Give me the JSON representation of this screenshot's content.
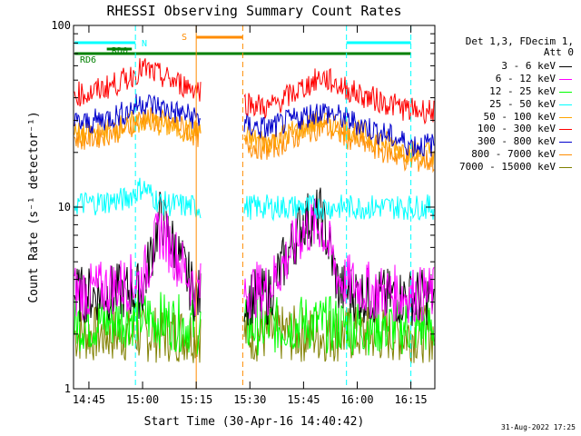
{
  "chart_data": {
    "type": "line",
    "title": "RHESSI Observing Summary Count Rates",
    "xlabel": "Start Time (30-Apr-16 14:40:42)",
    "ylabel": "Count Rate (s⁻¹ detector⁻¹)",
    "yscale": "log",
    "ylim": [
      1,
      100
    ],
    "yticks": [
      "1",
      "10",
      "100"
    ],
    "xticks": [
      "14:45",
      "15:00",
      "15:15",
      "15:30",
      "15:45",
      "16:00",
      "16:15"
    ],
    "legend_header": [
      "Det 1,3, FDecim 1,",
      "Att 0"
    ],
    "legend_position": "right",
    "series": [
      {
        "name": "3 - 6 keV",
        "color": "#000000",
        "values": {
          "14:45": 3.3,
          "15:00": 3.5,
          "15:05": 9.0,
          "15:15": 3.2,
          "15:35": 3.2,
          "15:45": 8.5,
          "15:50": 9.0,
          "15:55": 3.5,
          "16:05": 3.2,
          "16:15": 3.2
        }
      },
      {
        "name": "6 - 12 keV",
        "color": "#ff00ff",
        "values": {
          "14:45": 3.4,
          "15:00": 4.0,
          "15:05": 7.5,
          "15:15": 3.5,
          "15:35": 3.5,
          "15:45": 7.5,
          "15:50": 8.0,
          "15:55": 4.0,
          "16:05": 3.4,
          "16:15": 3.3
        }
      },
      {
        "name": "12 - 25 keV",
        "color": "#00ff00",
        "values": {
          "14:45": 2.3,
          "15:00": 2.5,
          "15:15": 2.2,
          "15:35": 2.2,
          "15:45": 2.3,
          "16:00": 2.2,
          "16:15": 2.2
        }
      },
      {
        "name": "25 - 50 keV",
        "color": "#00ffff",
        "values": {
          "14:45": 10.5,
          "14:55": 11.0,
          "15:00": 13.0,
          "15:05": 10.5,
          "15:15": 10.0,
          "15:35": 10.0,
          "15:45": 10.0,
          "16:00": 10.0,
          "16:15": 10.0
        }
      },
      {
        "name": "50 - 100 keV",
        "color": "#ffa500",
        "values": {
          "14:45": 25.0,
          "14:55": 28.0,
          "15:00": 30.0,
          "15:10": 27.0,
          "15:15": 26.0,
          "15:35": 23.0,
          "15:50": 30.0,
          "16:00": 26.0,
          "16:15": 20.0
        }
      },
      {
        "name": "100 - 300 keV",
        "color": "#ff0000",
        "values": {
          "14:45": 42.0,
          "14:55": 50.0,
          "15:00": 58.0,
          "15:10": 48.0,
          "15:15": 45.0,
          "15:35": 35.0,
          "15:50": 52.0,
          "16:00": 42.0,
          "16:15": 34.0
        }
      },
      {
        "name": "300 - 800 keV",
        "color": "#0000cc",
        "values": {
          "14:45": 29.0,
          "14:55": 33.0,
          "15:00": 38.0,
          "15:10": 33.0,
          "15:15": 31.0,
          "15:35": 27.0,
          "15:50": 34.0,
          "16:00": 29.0,
          "16:15": 22.0
        }
      },
      {
        "name": "800 - 7000 keV",
        "color": "#ff8c00",
        "values": {
          "14:45": 24.0,
          "14:55": 27.0,
          "15:00": 31.0,
          "15:10": 28.0,
          "15:15": 25.0,
          "15:35": 21.0,
          "15:50": 28.0,
          "16:00": 23.0,
          "16:15": 18.0
        }
      },
      {
        "name": "7000 - 15000 keV",
        "color": "#808000",
        "values": {
          "14:45": 2.0,
          "15:00": 2.0,
          "15:15": 2.0,
          "15:35": 2.0,
          "16:00": 2.0,
          "16:15": 2.0
        }
      }
    ],
    "flags": [
      {
        "label": "RD6",
        "color": "#008000"
      },
      {
        "label": "RD0",
        "color": "#008000"
      },
      {
        "label": "N",
        "color": "#00ffff"
      },
      {
        "label": "S",
        "color": "#ff8c00"
      }
    ]
  },
  "footer": {
    "timestamp": "31-Aug-2022 17:25"
  }
}
